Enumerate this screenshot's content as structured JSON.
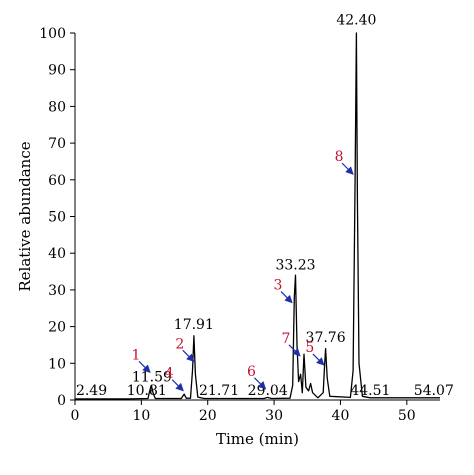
{
  "chart_data": {
    "type": "line",
    "title": "",
    "xlabel": "Time (min)",
    "ylabel": "Relative abundance",
    "xlim": [
      0,
      55
    ],
    "ylim": [
      0,
      100
    ],
    "x_ticks": [
      0,
      10,
      20,
      30,
      40,
      50
    ],
    "y_ticks": [
      0,
      10,
      20,
      30,
      40,
      50,
      60,
      70,
      80,
      90,
      100
    ],
    "grid": false,
    "line_color": "#000000",
    "marker_number_color": "#c8102e",
    "arrow_color": "#1f2fa8",
    "peak_labels": [
      {
        "text": "2.49",
        "x": 2.49,
        "y": 0.5
      },
      {
        "text": "10.81",
        "x": 10.81,
        "y": 0.5
      },
      {
        "text": "11.59",
        "x": 11.59,
        "y": 4.2
      },
      {
        "text": "17.91",
        "x": 17.91,
        "y": 18.5
      },
      {
        "text": "21.71",
        "x": 21.71,
        "y": 0.5
      },
      {
        "text": "29.04",
        "x": 29.04,
        "y": 0.5
      },
      {
        "text": "33.23",
        "x": 33.23,
        "y": 34.8
      },
      {
        "text": "37.76",
        "x": 37.76,
        "y": 15.0
      },
      {
        "text": "42.40",
        "x": 42.4,
        "y": 101.5
      },
      {
        "text": "44.51",
        "x": 44.51,
        "y": 0.5
      },
      {
        "text": "54.07",
        "x": 54.07,
        "y": 0.5
      }
    ],
    "markers": [
      {
        "num": "1",
        "x": 11.6,
        "y": 7.0
      },
      {
        "num": "2",
        "x": 18.2,
        "y": 10.0
      },
      {
        "num": "3",
        "x": 33.0,
        "y": 26.0
      },
      {
        "num": "4",
        "x": 16.6,
        "y": 2.0
      },
      {
        "num": "5",
        "x": 37.8,
        "y": 9.0
      },
      {
        "num": "6",
        "x": 29.0,
        "y": 2.5
      },
      {
        "num": "7",
        "x": 34.2,
        "y": 11.5
      },
      {
        "num": "8",
        "x": 42.2,
        "y": 61.0
      }
    ],
    "series": [
      {
        "values": [
          [
            0,
            0.3
          ],
          [
            8,
            0.3
          ],
          [
            11.0,
            0.4
          ],
          [
            11.25,
            2.5
          ],
          [
            11.5,
            4.0
          ],
          [
            11.75,
            2.0
          ],
          [
            12.1,
            0.4
          ],
          [
            16.0,
            0.4
          ],
          [
            16.45,
            1.6
          ],
          [
            16.75,
            0.5
          ],
          [
            17.4,
            0.5
          ],
          [
            17.7,
            8.0
          ],
          [
            17.91,
            17.5
          ],
          [
            18.15,
            7.0
          ],
          [
            18.5,
            0.8
          ],
          [
            19.5,
            0.4
          ],
          [
            28.5,
            0.4
          ],
          [
            29.0,
            0.7
          ],
          [
            29.6,
            0.4
          ],
          [
            32.4,
            0.5
          ],
          [
            32.8,
            4.0
          ],
          [
            33.05,
            28.0
          ],
          [
            33.23,
            34.0
          ],
          [
            33.45,
            15.0
          ],
          [
            33.7,
            5.0
          ],
          [
            34.0,
            7.0
          ],
          [
            34.25,
            2.0
          ],
          [
            34.5,
            12.5
          ],
          [
            34.8,
            3.5
          ],
          [
            35.2,
            2.5
          ],
          [
            35.5,
            4.5
          ],
          [
            35.8,
            2.0
          ],
          [
            36.6,
            0.6
          ],
          [
            37.4,
            2.0
          ],
          [
            37.6,
            9.0
          ],
          [
            37.76,
            14.0
          ],
          [
            38.0,
            6.0
          ],
          [
            38.4,
            1.0
          ],
          [
            41.5,
            0.7
          ],
          [
            41.9,
            8.0
          ],
          [
            42.2,
            60.0
          ],
          [
            42.4,
            100.0
          ],
          [
            42.55,
            55.0
          ],
          [
            42.8,
            10.0
          ],
          [
            43.3,
            1.0
          ],
          [
            44.5,
            0.6
          ],
          [
            55,
            0.6
          ]
        ]
      }
    ]
  }
}
